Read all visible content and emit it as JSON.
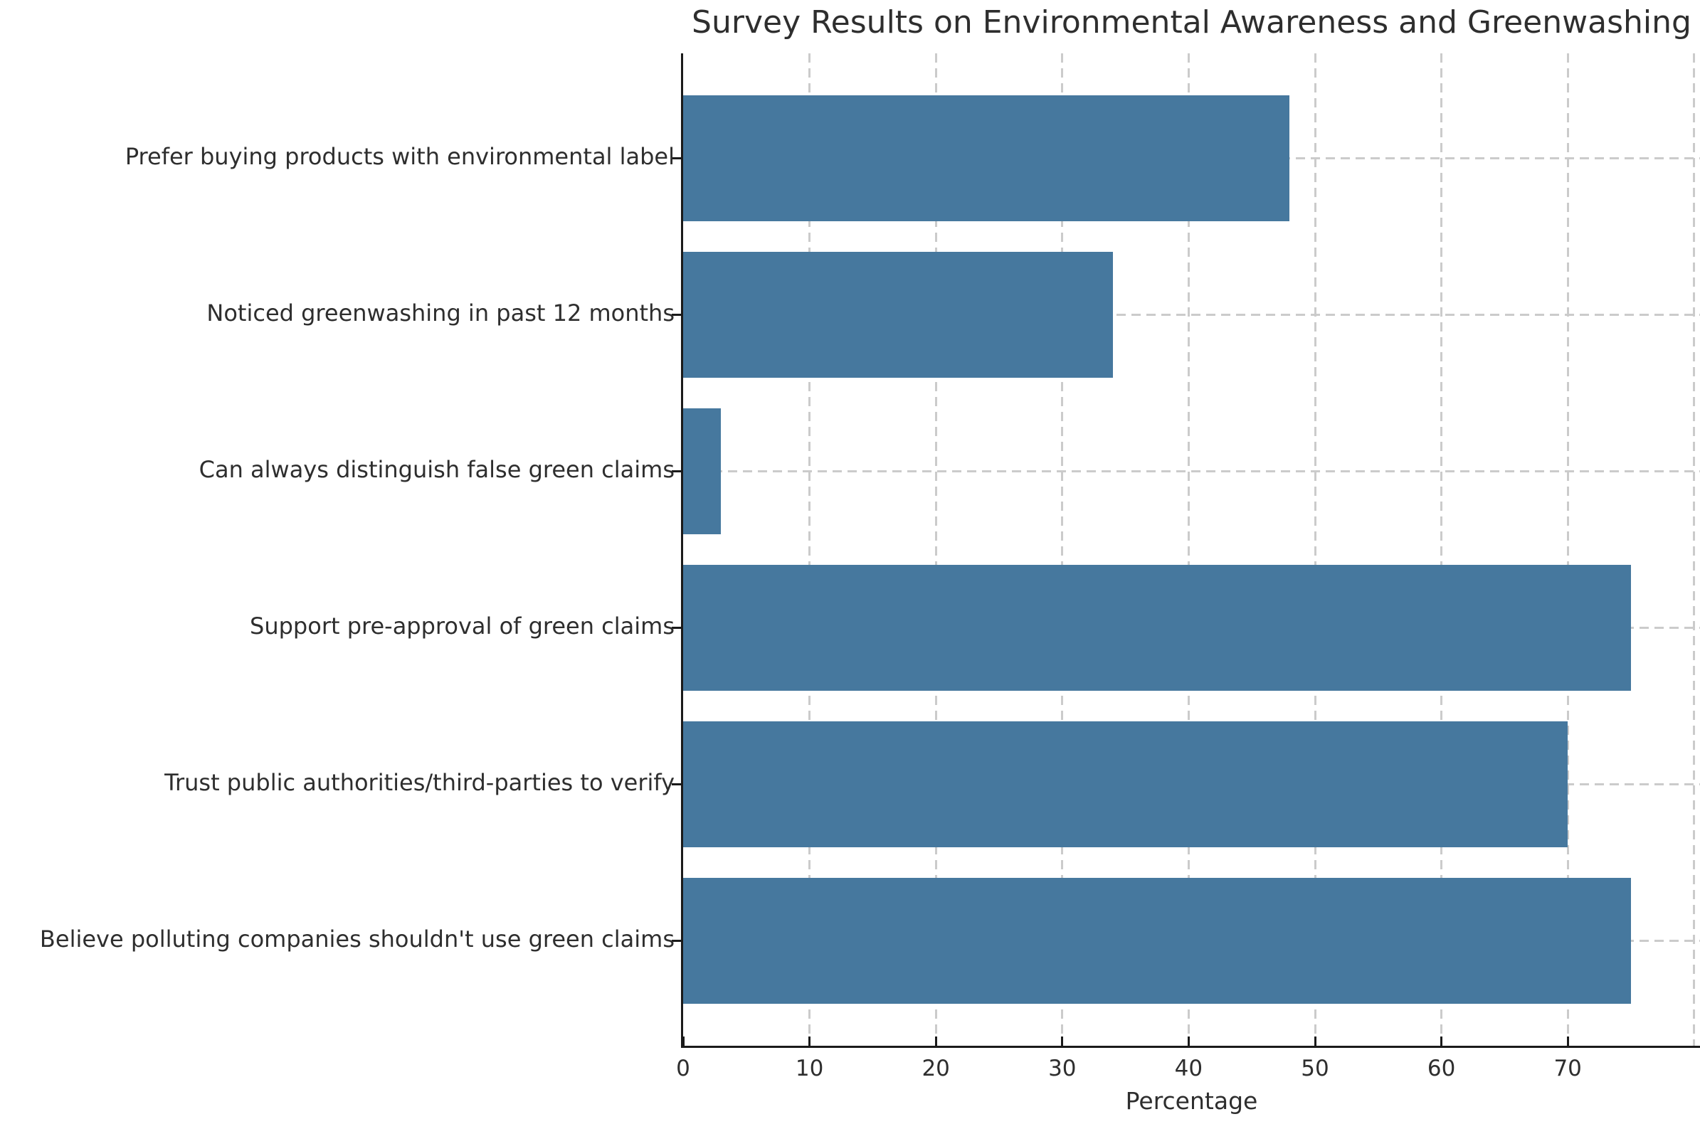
{
  "chart_data": {
    "type": "bar",
    "orientation": "horizontal",
    "title": "Survey Results on Environmental Awareness and Greenwashing",
    "xlabel": "Percentage",
    "ylabel": "",
    "categories": [
      "Prefer buying products with environmental label",
      "Noticed greenwashing in past 12 months",
      "Can always distinguish false green claims",
      "Support pre-approval of green claims",
      "Trust public authorities/third-parties to verify",
      "Believe polluting companies shouldn't use green claims"
    ],
    "values": [
      48,
      34,
      3,
      75,
      70,
      75
    ],
    "xticks": [
      0,
      10,
      20,
      30,
      40,
      50,
      60,
      70
    ],
    "grid_x_values": [
      10,
      20,
      30,
      40,
      50,
      60,
      70,
      80
    ],
    "xlim": [
      0,
      80.5
    ],
    "grid_style": "dashed",
    "legend": "none",
    "bar_color": "#46789e",
    "grid_color": "#cbcbcb",
    "axis_color": "#1a1a1a",
    "text_color": "#2e2e2e",
    "background": "#ffffff"
  }
}
